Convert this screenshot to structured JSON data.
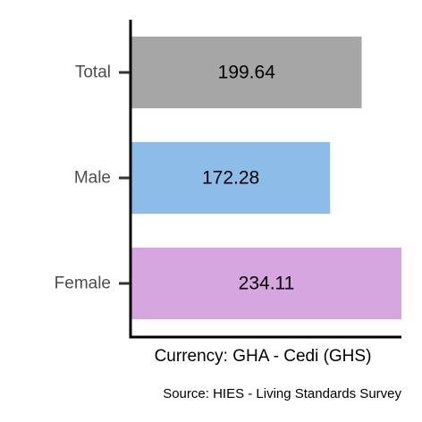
{
  "chart_data": {
    "type": "bar",
    "orientation": "horizontal",
    "categories": [
      "Total",
      "Male",
      "Female"
    ],
    "values": [
      199.64,
      172.28,
      234.11
    ],
    "value_labels": [
      "199.64",
      "172.28",
      "234.11"
    ],
    "colors": [
      "#a6a6a6",
      "#8bbde8",
      "#d5a6e0"
    ],
    "xlabel": "Currency: GHA - Cedi (GHS)",
    "caption": "Source:  HIES - Living Standards Survey",
    "xlim": [
      0,
      234.11
    ],
    "grid": false,
    "legend": "none"
  }
}
